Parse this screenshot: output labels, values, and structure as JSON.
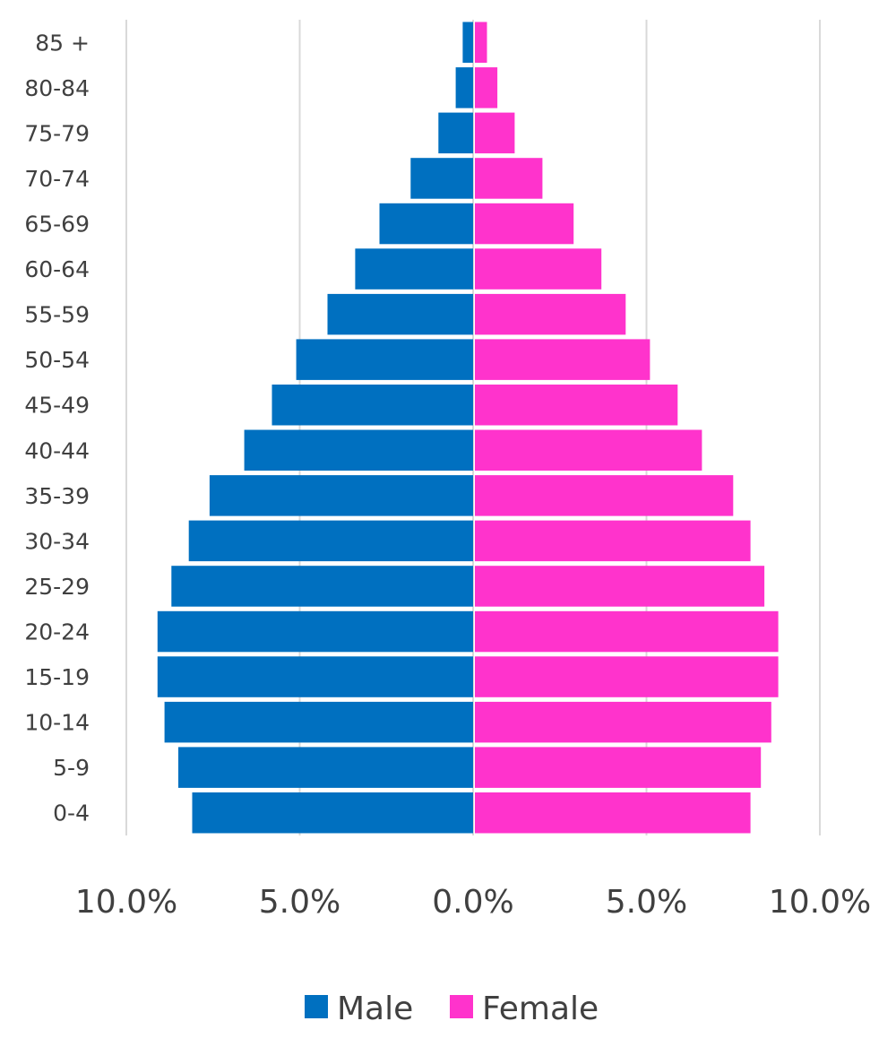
{
  "chart_data": {
    "type": "bar",
    "orientation": "horizontal",
    "layout": "population-pyramid",
    "categories": [
      "0-4",
      "5-9",
      "10-14",
      "15-19",
      "20-24",
      "25-29",
      "30-34",
      "35-39",
      "40-44",
      "45-49",
      "50-54",
      "55-59",
      "60-64",
      "65-69",
      "70-74",
      "75-79",
      "80-84",
      "85 +"
    ],
    "series": [
      {
        "name": "Male",
        "color": "#0070c0",
        "direction": "left",
        "values": [
          8.1,
          8.5,
          8.9,
          9.1,
          9.1,
          8.7,
          8.2,
          7.6,
          6.6,
          5.8,
          5.1,
          4.2,
          3.4,
          2.7,
          1.8,
          1.0,
          0.5,
          0.3
        ]
      },
      {
        "name": "Female",
        "color": "#ff33cc",
        "direction": "right",
        "values": [
          8.0,
          8.3,
          8.6,
          8.8,
          8.8,
          8.4,
          8.0,
          7.5,
          6.6,
          5.9,
          5.1,
          4.4,
          3.7,
          2.9,
          2.0,
          1.2,
          0.7,
          0.4
        ]
      }
    ],
    "x_ticks": [
      "10.0%",
      "5.0%",
      "0.0%",
      "5.0%",
      "10.0%"
    ],
    "x_tick_values": [
      -10,
      -5,
      0,
      5,
      10
    ],
    "xlim": [
      -10,
      10
    ],
    "title": "",
    "xlabel": "",
    "ylabel": "",
    "grid": "vertical",
    "legend": {
      "position": "bottom",
      "entries": [
        "Male",
        "Female"
      ]
    }
  }
}
